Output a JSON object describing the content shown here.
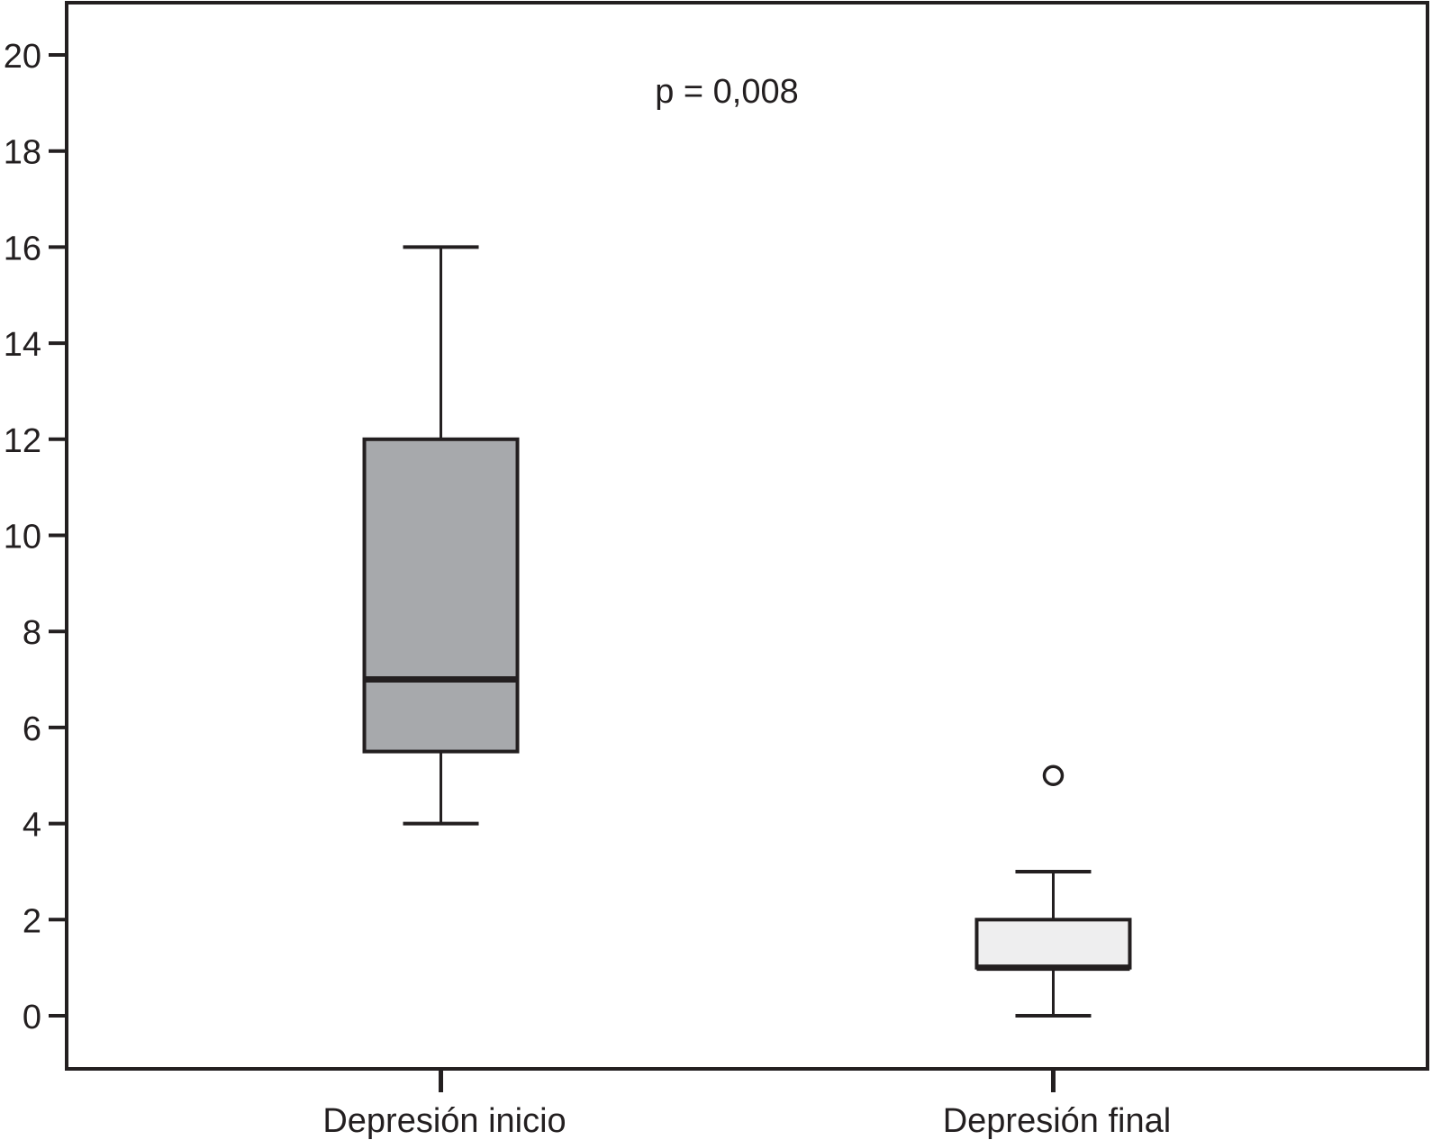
{
  "chart_data": {
    "type": "boxplot",
    "categories": [
      "Depresión inicio",
      "Depresión final"
    ],
    "series": [
      {
        "category": "Depresión inicio",
        "min": 4,
        "q1": 5.5,
        "median": 7,
        "q3": 12,
        "max": 16,
        "outliers": [],
        "fill": "#a7a9ac"
      },
      {
        "category": "Depresión final",
        "min": 0,
        "q1": 1,
        "median": 1,
        "q3": 2,
        "max": 3,
        "outliers": [
          5
        ],
        "fill": "#eeeeef"
      }
    ],
    "yticks": [
      0,
      2,
      4,
      6,
      8,
      10,
      12,
      14,
      16,
      18,
      20
    ],
    "ylim": [
      -1.1,
      21
    ],
    "annotation": "p = 0,008",
    "title": "",
    "xlabel": "",
    "ylabel": "",
    "grid": false,
    "colors": {
      "stroke": "#231f20"
    }
  }
}
